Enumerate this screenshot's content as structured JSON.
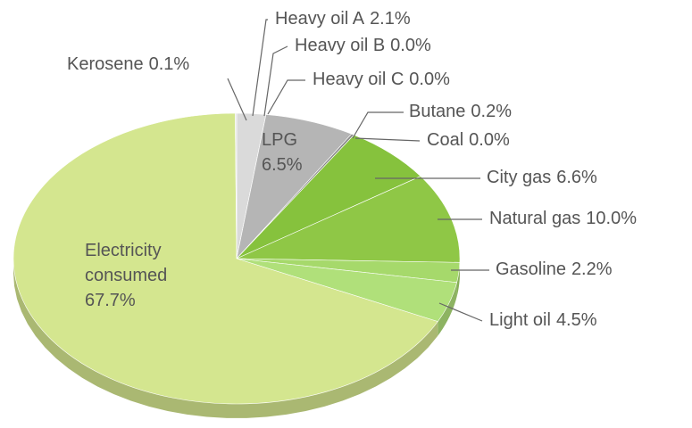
{
  "chart_data": {
    "type": "pie",
    "categories": [
      "Heavy oil A",
      "Heavy oil B",
      "Heavy oil C",
      "LPG",
      "Butane",
      "Coal",
      "City gas",
      "Natural gas",
      "Gasoline",
      "Light oil",
      "Electricity consumed",
      "Kerosene"
    ],
    "values": [
      2.1,
      0.0,
      0.0,
      6.5,
      0.2,
      0.0,
      6.6,
      10.0,
      2.2,
      4.5,
      67.7,
      0.1
    ],
    "value_labels": [
      "2.1%",
      "0.0%",
      "0.0%",
      "6.5%",
      "0.2%",
      "0.0%",
      "6.6%",
      "10.0%",
      "2.2%",
      "4.5%",
      "67.7%",
      "0.1%"
    ],
    "colors": [
      "#dadada",
      "#cfcfcf",
      "#c4c4c4",
      "#b5b5b5",
      "#8a8a8a",
      "#7a9a4a",
      "#86c23d",
      "#8fc746",
      "#a6d96b",
      "#b0e07a",
      "#d4e68f",
      "#e2e2e2"
    ]
  }
}
